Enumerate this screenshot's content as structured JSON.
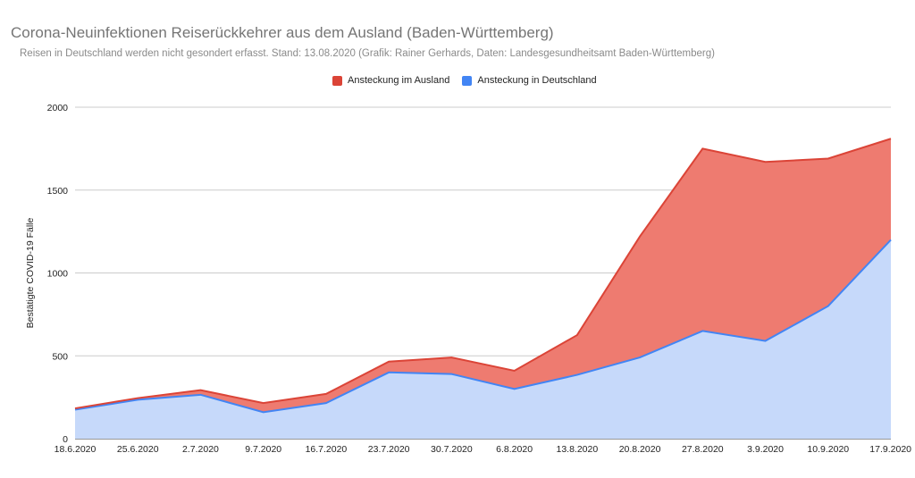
{
  "chart_data": {
    "type": "area",
    "stacked": true,
    "title": "Corona-Neuinfektionen Reiserückkehrer aus dem Ausland (Baden-Württemberg)",
    "subtitle": "Reisen in Deutschland werden nicht gesondert erfasst. Stand: 13.08.2020 (Grafik: Rainer Gerhards, Daten: Landesgesundheitsamt Baden-Württemberg)",
    "xlabel": "",
    "ylabel": "Bestätigte COVID-19 Fälle",
    "ylim": [
      0,
      2000
    ],
    "yticks": [
      0,
      500,
      1000,
      1500,
      2000
    ],
    "legend_position": "top",
    "categories": [
      "18.6.2020",
      "25.6.2020",
      "2.7.2020",
      "9.7.2020",
      "16.7.2020",
      "23.7.2020",
      "30.7.2020",
      "6.8.2020",
      "13.8.2020",
      "20.8.2020",
      "27.8.2020",
      "3.9.2020",
      "10.9.2020",
      "17.9.2020"
    ],
    "series": [
      {
        "name": "Ansteckung in Deutschland",
        "color": "#4285f4",
        "fill": "#c6d9fa",
        "values": [
          175,
          235,
          265,
          160,
          215,
          400,
          390,
          300,
          385,
          490,
          650,
          590,
          800,
          1200
        ]
      },
      {
        "name": "Ansteckung im Ausland",
        "color": "#db4437",
        "fill": "#ee7b70",
        "values": [
          8,
          10,
          28,
          55,
          55,
          65,
          100,
          110,
          240,
          730,
          1100,
          1080,
          890,
          610
        ]
      }
    ]
  }
}
